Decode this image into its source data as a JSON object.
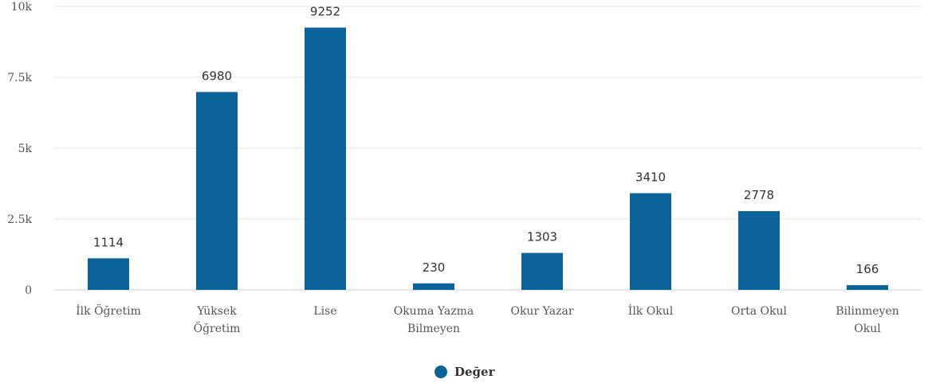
{
  "chart_data": {
    "type": "bar",
    "categories": [
      [
        "İlk Öğretim"
      ],
      [
        "Yüksek",
        "Öğretim"
      ],
      [
        "Lise"
      ],
      [
        "Okuma Yazma",
        "Bilmeyen"
      ],
      [
        "Okur Yazar"
      ],
      [
        "İlk Okul"
      ],
      [
        "Orta Okul"
      ],
      [
        "Bilinmeyen",
        "Okul"
      ]
    ],
    "series": [
      {
        "name": "Değer",
        "values": [
          1114,
          6980,
          9252,
          230,
          1303,
          3410,
          2778,
          166
        ]
      }
    ],
    "data_labels": [
      "1114",
      "6980",
      "9252",
      "230",
      "1303",
      "3410",
      "2778",
      "166"
    ],
    "ylim": [
      0,
      10000
    ],
    "yticks": [
      {
        "value": 0,
        "label": "0"
      },
      {
        "value": 2500,
        "label": "2.5k"
      },
      {
        "value": 5000,
        "label": "5k"
      },
      {
        "value": 7500,
        "label": "7.5k"
      },
      {
        "value": 10000,
        "label": "10k"
      }
    ],
    "grid": true,
    "legend_position": "bottom-center",
    "colors": {
      "bar": "#0b6399",
      "grid": "#e6e6e6",
      "axis": "#cccccc"
    }
  }
}
